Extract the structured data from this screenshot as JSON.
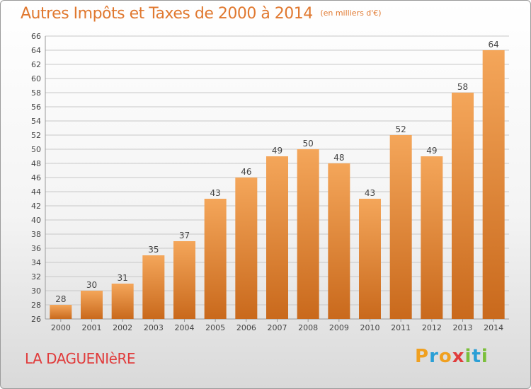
{
  "chart_title": "Autres Impôts et Taxes de 2000 à 2014",
  "chart_unit": "(en milliers d'€)",
  "commune": "LA DAGUENIèRE",
  "logo_text": "Proxiti",
  "colors": {
    "title": "#e0782f",
    "bar_light": "#f4a65a",
    "bar_dark": "#c9691c",
    "grid": "#c8c8c8",
    "commune": "#e03c3c"
  },
  "chart_data": {
    "type": "bar",
    "title": "Autres Impôts et Taxes de 2000 à 2014",
    "subtitle": "(en milliers d'€)",
    "xlabel": "",
    "ylabel": "",
    "categories": [
      "2000",
      "2001",
      "2002",
      "2003",
      "2004",
      "2005",
      "2006",
      "2007",
      "2008",
      "2009",
      "2010",
      "2011",
      "2012",
      "2013",
      "2014"
    ],
    "values": [
      28,
      30,
      31,
      35,
      37,
      43,
      46,
      49,
      50,
      48,
      43,
      52,
      49,
      58,
      64
    ],
    "ylim": [
      26,
      66
    ],
    "ytick_step": 2,
    "grid": true,
    "legend": "none"
  }
}
